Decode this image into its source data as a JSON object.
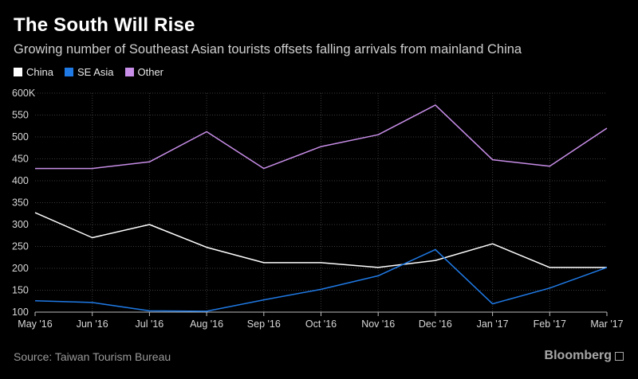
{
  "header": {
    "title": "The South Will Rise",
    "subtitle": "Growing number of Southeast Asian tourists offsets falling arrivals from mainland China"
  },
  "footer": {
    "source": "Source: Taiwan Tourism Bureau",
    "brand": "Bloomberg"
  },
  "chart_data": {
    "type": "line",
    "title": "The South Will Rise",
    "subtitle": "Growing number of Southeast Asian tourists offsets falling arrivals from mainland China",
    "x": [
      "May '16",
      "Jun '16",
      "Jul '16",
      "Aug '16",
      "Sep '16",
      "Oct '16",
      "Nov '16",
      "Dec '16",
      "Jan '17",
      "Feb '17",
      "Mar '17"
    ],
    "series": [
      {
        "name": "China",
        "color": "#ffffff",
        "values": [
          327,
          270,
          300,
          248,
          213,
          213,
          202,
          218,
          256,
          202,
          202
        ]
      },
      {
        "name": "SE Asia",
        "color": "#1f7ae6",
        "values": [
          126,
          122,
          103,
          102,
          128,
          152,
          183,
          243,
          119,
          155,
          202
        ]
      },
      {
        "name": "Other",
        "color": "#c88ee8",
        "values": [
          428,
          428,
          443,
          512,
          428,
          478,
          505,
          573,
          448,
          433,
          520
        ]
      }
    ],
    "yticks": [
      "600K",
      "550",
      "500",
      "450",
      "400",
      "350",
      "300",
      "250",
      "200",
      "150",
      "100"
    ],
    "ylim": [
      100,
      600
    ],
    "grid": true,
    "legend_position": "top-left"
  }
}
